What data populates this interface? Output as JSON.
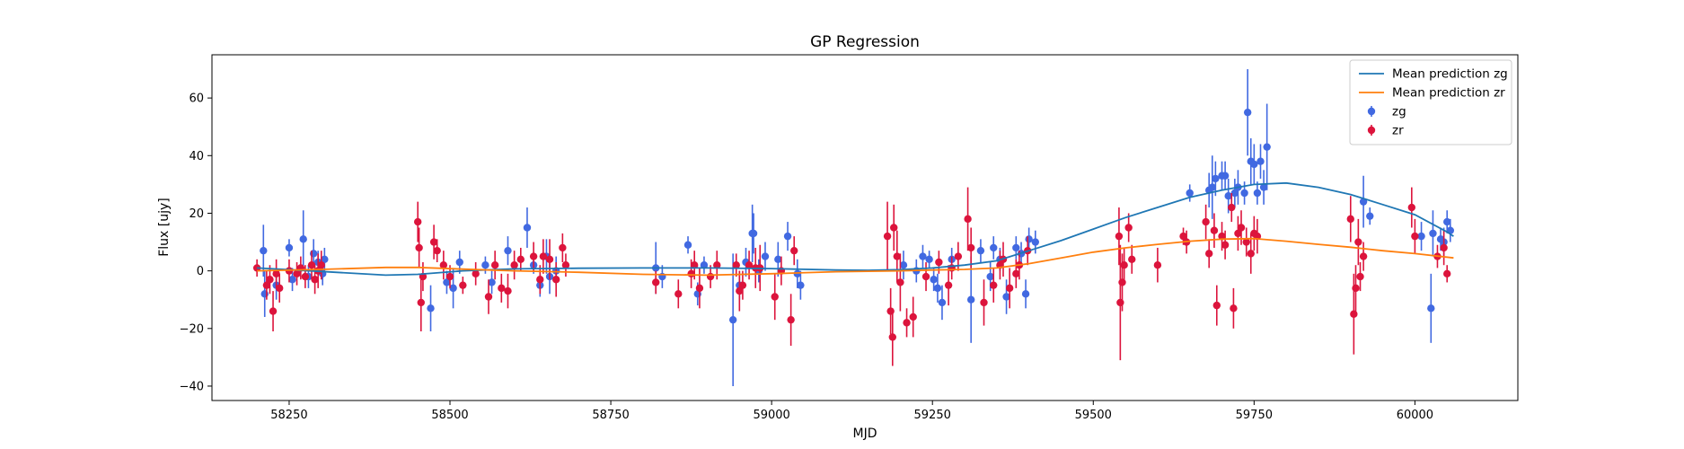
{
  "chart_data": {
    "type": "scatter",
    "title": "GP Regression",
    "xlabel": "MJD",
    "ylabel": "Flux [ujy]",
    "xlim": [
      58130,
      60160
    ],
    "ylim": [
      -45,
      75
    ],
    "xticks": [
      58250,
      58500,
      58750,
      59000,
      59250,
      59500,
      59750,
      60000
    ],
    "yticks": [
      -40,
      -20,
      0,
      20,
      40,
      60
    ],
    "grid": false,
    "legend_position": "top-right",
    "series": [
      {
        "name": "Mean prediction zg",
        "kind": "line",
        "color": "#1f77b4",
        "points": [
          [
            58200,
            1.0
          ],
          [
            58300,
            -0.2
          ],
          [
            58400,
            -1.5
          ],
          [
            58450,
            -1.2
          ],
          [
            58520,
            0.0
          ],
          [
            58600,
            0.7
          ],
          [
            58700,
            0.9
          ],
          [
            58800,
            1.0
          ],
          [
            58900,
            1.0
          ],
          [
            59000,
            0.8
          ],
          [
            59100,
            0.3
          ],
          [
            59150,
            0.2
          ],
          [
            59200,
            0.4
          ],
          [
            59250,
            1.0
          ],
          [
            59300,
            2.0
          ],
          [
            59350,
            3.5
          ],
          [
            59400,
            7.0
          ],
          [
            59450,
            10.5
          ],
          [
            59500,
            14.5
          ],
          [
            59550,
            18.5
          ],
          [
            59600,
            22.0
          ],
          [
            59650,
            25.5
          ],
          [
            59700,
            28.0
          ],
          [
            59750,
            30.0
          ],
          [
            59800,
            30.5
          ],
          [
            59850,
            29.0
          ],
          [
            59900,
            26.5
          ],
          [
            59950,
            23.0
          ],
          [
            60000,
            19.5
          ],
          [
            60050,
            13.5
          ],
          [
            60060,
            12.0
          ]
        ]
      },
      {
        "name": "Mean prediction zr",
        "kind": "line",
        "color": "#ff7f0e",
        "points": [
          [
            58200,
            0.0
          ],
          [
            58300,
            0.5
          ],
          [
            58400,
            1.2
          ],
          [
            58450,
            1.2
          ],
          [
            58520,
            0.6
          ],
          [
            58600,
            0.0
          ],
          [
            58700,
            -0.5
          ],
          [
            58800,
            -1.2
          ],
          [
            58900,
            -1.5
          ],
          [
            59000,
            -1.0
          ],
          [
            59100,
            -0.3
          ],
          [
            59200,
            0.0
          ],
          [
            59250,
            0.3
          ],
          [
            59300,
            0.5
          ],
          [
            59350,
            1.0
          ],
          [
            59400,
            2.5
          ],
          [
            59450,
            4.5
          ],
          [
            59500,
            6.5
          ],
          [
            59550,
            8.0
          ],
          [
            59600,
            9.2
          ],
          [
            59650,
            10.3
          ],
          [
            59700,
            11.0
          ],
          [
            59750,
            11.2
          ],
          [
            59800,
            10.3
          ],
          [
            59850,
            9.2
          ],
          [
            59900,
            8.2
          ],
          [
            59950,
            7.0
          ],
          [
            60000,
            6.0
          ],
          [
            60060,
            4.5
          ]
        ]
      },
      {
        "name": "zg",
        "kind": "errorbar",
        "color": "#4169e1",
        "points": [
          [
            58210,
            7,
            9
          ],
          [
            58212,
            -8,
            8
          ],
          [
            58230,
            -5,
            5
          ],
          [
            58250,
            8,
            3
          ],
          [
            58255,
            -3,
            4
          ],
          [
            58272,
            11,
            10
          ],
          [
            58280,
            -2,
            4
          ],
          [
            58288,
            6,
            5
          ],
          [
            58295,
            3,
            4
          ],
          [
            58302,
            -1,
            4
          ],
          [
            58305,
            4,
            4
          ],
          [
            58470,
            -13,
            8
          ],
          [
            58495,
            -4,
            4
          ],
          [
            58505,
            -6,
            7
          ],
          [
            58515,
            3,
            4
          ],
          [
            58555,
            2,
            3
          ],
          [
            58565,
            -4,
            4
          ],
          [
            58590,
            7,
            5
          ],
          [
            58620,
            15,
            7
          ],
          [
            58630,
            2,
            3
          ],
          [
            58640,
            -5,
            4
          ],
          [
            58650,
            5,
            6
          ],
          [
            58655,
            -2,
            6
          ],
          [
            58665,
            0,
            5
          ],
          [
            58820,
            1,
            9
          ],
          [
            58830,
            -2,
            4
          ],
          [
            58870,
            9,
            3
          ],
          [
            58885,
            -8,
            4
          ],
          [
            58895,
            2,
            3
          ],
          [
            58940,
            -17,
            23
          ],
          [
            58950,
            -5,
            5
          ],
          [
            58960,
            3,
            5
          ],
          [
            58970,
            13,
            10
          ],
          [
            58972,
            13,
            7
          ],
          [
            58980,
            0,
            4
          ],
          [
            58990,
            5,
            5
          ],
          [
            59010,
            4,
            6
          ],
          [
            59025,
            12,
            5
          ],
          [
            59040,
            -1,
            5
          ],
          [
            59045,
            -5,
            5
          ],
          [
            59205,
            2,
            5
          ],
          [
            59225,
            0,
            4
          ],
          [
            59235,
            5,
            4
          ],
          [
            59245,
            4,
            3
          ],
          [
            59252,
            -3,
            4
          ],
          [
            59258,
            -6,
            5
          ],
          [
            59265,
            -11,
            6
          ],
          [
            59280,
            4,
            4
          ],
          [
            59310,
            -10,
            15
          ],
          [
            59325,
            7,
            4
          ],
          [
            59340,
            -2,
            5
          ],
          [
            59345,
            8,
            4
          ],
          [
            59355,
            4,
            4
          ],
          [
            59365,
            -9,
            6
          ],
          [
            59380,
            8,
            4
          ],
          [
            59388,
            6,
            4
          ],
          [
            59395,
            -8,
            5
          ],
          [
            59400,
            11,
            4
          ],
          [
            59410,
            10,
            4
          ],
          [
            59650,
            27,
            3
          ],
          [
            59680,
            28,
            6
          ],
          [
            59685,
            29,
            11
          ],
          [
            59690,
            32,
            6
          ],
          [
            59700,
            33,
            5
          ],
          [
            59705,
            33,
            5
          ],
          [
            59710,
            26,
            6
          ],
          [
            59720,
            27,
            5
          ],
          [
            59725,
            29,
            6
          ],
          [
            59735,
            27,
            4
          ],
          [
            59740,
            55,
            15
          ],
          [
            59745,
            38,
            8
          ],
          [
            59750,
            37,
            7
          ],
          [
            59755,
            27,
            4
          ],
          [
            59760,
            38,
            6
          ],
          [
            59765,
            29,
            6
          ],
          [
            59770,
            43,
            15
          ],
          [
            59920,
            24,
            9
          ],
          [
            59930,
            19,
            3
          ],
          [
            60010,
            12,
            5
          ],
          [
            60025,
            -13,
            12
          ],
          [
            60028,
            13,
            8
          ],
          [
            60040,
            11,
            4
          ],
          [
            60045,
            10,
            5
          ],
          [
            60050,
            17,
            4
          ],
          [
            60055,
            14,
            4
          ]
        ]
      },
      {
        "name": "zr",
        "kind": "errorbar",
        "color": "#dc143c",
        "points": [
          [
            58200,
            1,
            3
          ],
          [
            58215,
            -5,
            5
          ],
          [
            58220,
            -3,
            5
          ],
          [
            58225,
            -14,
            7
          ],
          [
            58230,
            -1,
            5
          ],
          [
            58235,
            -6,
            5
          ],
          [
            58250,
            0,
            4
          ],
          [
            58262,
            -1,
            4
          ],
          [
            58268,
            1,
            4
          ],
          [
            58275,
            -2,
            4
          ],
          [
            58285,
            2,
            5
          ],
          [
            58290,
            -3,
            5
          ],
          [
            58295,
            0,
            6
          ],
          [
            58300,
            2,
            5
          ],
          [
            58450,
            17,
            7
          ],
          [
            58452,
            8,
            7
          ],
          [
            58455,
            -11,
            10
          ],
          [
            58458,
            -2,
            5
          ],
          [
            58475,
            10,
            6
          ],
          [
            58480,
            7,
            4
          ],
          [
            58490,
            2,
            5
          ],
          [
            58500,
            -2,
            4
          ],
          [
            58520,
            -5,
            3
          ],
          [
            58540,
            -1,
            4
          ],
          [
            58560,
            -9,
            6
          ],
          [
            58570,
            2,
            5
          ],
          [
            58580,
            -6,
            5
          ],
          [
            58590,
            -7,
            6
          ],
          [
            58600,
            2,
            5
          ],
          [
            58610,
            4,
            4
          ],
          [
            58630,
            5,
            5
          ],
          [
            58640,
            -3,
            5
          ],
          [
            58645,
            5,
            6
          ],
          [
            58655,
            4,
            7
          ],
          [
            58665,
            -3,
            6
          ],
          [
            58675,
            8,
            5
          ],
          [
            58680,
            2,
            4
          ],
          [
            58820,
            -4,
            4
          ],
          [
            58855,
            -8,
            5
          ],
          [
            58875,
            -1,
            5
          ],
          [
            58880,
            2,
            5
          ],
          [
            58888,
            -6,
            7
          ],
          [
            58905,
            -2,
            4
          ],
          [
            58915,
            2,
            5
          ],
          [
            58945,
            2,
            4
          ],
          [
            58950,
            -7,
            7
          ],
          [
            58955,
            -5,
            5
          ],
          [
            58965,
            2,
            5
          ],
          [
            58975,
            1,
            7
          ],
          [
            58982,
            1,
            8
          ],
          [
            59005,
            -9,
            8
          ],
          [
            59015,
            0,
            5
          ],
          [
            59030,
            -17,
            9
          ],
          [
            59035,
            7,
            5
          ],
          [
            59180,
            12,
            12
          ],
          [
            59185,
            -14,
            8
          ],
          [
            59188,
            -23,
            10
          ],
          [
            59190,
            15,
            8
          ],
          [
            59195,
            5,
            9
          ],
          [
            59200,
            -4,
            10
          ],
          [
            59210,
            -18,
            5
          ],
          [
            59220,
            -16,
            7
          ],
          [
            59240,
            -2,
            5
          ],
          [
            59260,
            3,
            4
          ],
          [
            59275,
            -5,
            7
          ],
          [
            59280,
            1,
            4
          ],
          [
            59290,
            5,
            5
          ],
          [
            59305,
            18,
            11
          ],
          [
            59310,
            8,
            7
          ],
          [
            59330,
            -11,
            8
          ],
          [
            59345,
            -5,
            6
          ],
          [
            59355,
            2,
            5
          ],
          [
            59360,
            4,
            6
          ],
          [
            59370,
            -6,
            7
          ],
          [
            59380,
            -1,
            5
          ],
          [
            59385,
            2,
            5
          ],
          [
            59398,
            7,
            5
          ],
          [
            59540,
            12,
            10
          ],
          [
            59542,
            -11,
            20
          ],
          [
            59545,
            -4,
            10
          ],
          [
            59548,
            2,
            6
          ],
          [
            59555,
            15,
            5
          ],
          [
            59560,
            4,
            5
          ],
          [
            59600,
            2,
            6
          ],
          [
            59640,
            12,
            3
          ],
          [
            59645,
            10,
            4
          ],
          [
            59675,
            17,
            6
          ],
          [
            59680,
            6,
            5
          ],
          [
            59688,
            14,
            6
          ],
          [
            59692,
            -12,
            7
          ],
          [
            59700,
            12,
            5
          ],
          [
            59705,
            9,
            5
          ],
          [
            59715,
            22,
            5
          ],
          [
            59718,
            -13,
            7
          ],
          [
            59725,
            13,
            6
          ],
          [
            59730,
            15,
            6
          ],
          [
            59738,
            10,
            5
          ],
          [
            59745,
            6,
            7
          ],
          [
            59750,
            13,
            6
          ],
          [
            59755,
            12,
            6
          ],
          [
            59900,
            18,
            8
          ],
          [
            59905,
            -15,
            14
          ],
          [
            59908,
            -6,
            8
          ],
          [
            59912,
            10,
            8
          ],
          [
            59915,
            -2,
            5
          ],
          [
            59920,
            5,
            5
          ],
          [
            59995,
            22,
            7
          ],
          [
            60000,
            12,
            6
          ],
          [
            60035,
            5,
            4
          ],
          [
            60045,
            8,
            6
          ],
          [
            60050,
            -1,
            3
          ]
        ]
      }
    ]
  }
}
